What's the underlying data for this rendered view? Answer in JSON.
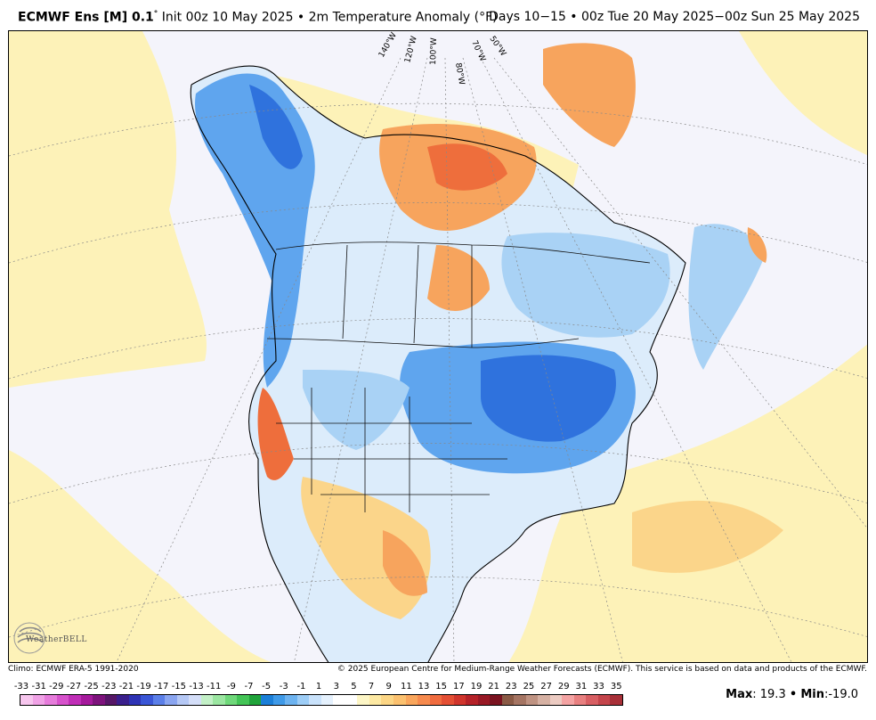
{
  "header": {
    "model": "ECMWF Ens [M] 0.1",
    "degree": "°",
    "init_and_field": "Init 00z 10 May 2025 • 2m Temperature Anomaly (°F)",
    "valid_range": "Days 10−15 • 00z Tue 20 May 2025−00z Sun 25 May 2025"
  },
  "map": {
    "longitude_labels": [
      "140°W",
      "120°W",
      "100°W",
      "80°W",
      "70°W",
      "50°W"
    ],
    "colors": {
      "ocean_bg": "#f4f4fb",
      "pale_yellow": "#fdf2b8",
      "light_orange": "#fbd58a",
      "orange": "#f7a45d",
      "red_orange": "#ee6e3c",
      "pale_blue": "#dcecfb",
      "light_blue": "#a9d2f5",
      "blue": "#5fa5ee",
      "deep_blue": "#2f72dd"
    },
    "logo_text": "WeatherBELL"
  },
  "footer": {
    "climo": "Climo: ECMWF ERA-5 1991-2020",
    "copyright": "© 2025 European Centre for Medium-Range Weather Forecasts (ECMWF). This service is based on data and products of the ECMWF."
  },
  "colorbar": {
    "labels": [
      "-33",
      "-31",
      "-29",
      "-27",
      "-25",
      "-23",
      "-21",
      "-19",
      "-17",
      "-15",
      "-13",
      "-11",
      "-9",
      "-7",
      "-5",
      "-3",
      "-1",
      "1",
      "3",
      "5",
      "7",
      "9",
      "11",
      "13",
      "15",
      "17",
      "19",
      "21",
      "23",
      "25",
      "27",
      "29",
      "31",
      "33",
      "35"
    ],
    "colors": [
      "#f7c6ee",
      "#f0a2e6",
      "#e67cdb",
      "#d752cc",
      "#c02eb7",
      "#a51a9c",
      "#7d137c",
      "#561767",
      "#3a1f8c",
      "#2e33b5",
      "#3a56d6",
      "#5b7fe8",
      "#8aa5f0",
      "#b5c8f5",
      "#d4def8",
      "#c3f0c7",
      "#9be6a1",
      "#6fd87a",
      "#43c456",
      "#20a33a",
      "#1b7fd8",
      "#3f9ae8",
      "#6db3f0",
      "#9dcdf6",
      "#c9e2fb",
      "#e5f1fd",
      "#ffffff",
      "#ffffff",
      "#fdf6c6",
      "#fde9a3",
      "#fcd685",
      "#fbc16f",
      "#f9a65c",
      "#f68a4d",
      "#f06c3f",
      "#e44f34",
      "#d0352c",
      "#b52228",
      "#981925",
      "#7a1320",
      "#8a5a45",
      "#a57563",
      "#bf9382",
      "#d6b1a3",
      "#eccbc2",
      "#f4a3a3",
      "#e88080",
      "#d85f63",
      "#c4454b",
      "#a83038"
    ],
    "max_label": "Max",
    "max_value": "19.3",
    "min_label": "Min",
    "min_value": "-19.0",
    "sep": "•"
  }
}
